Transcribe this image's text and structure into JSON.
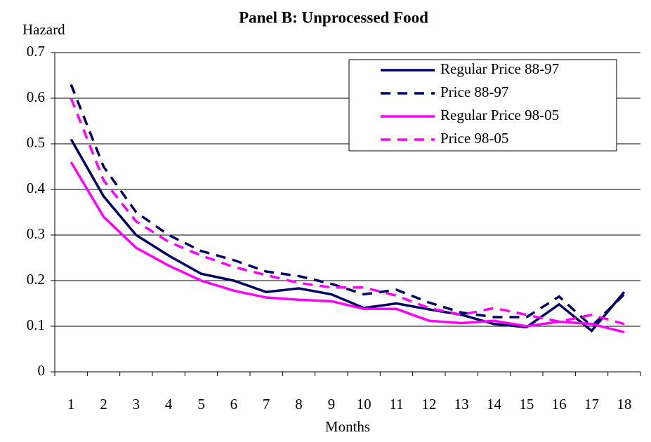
{
  "chart_data": {
    "type": "line",
    "title": "Panel B: Unprocessed Food",
    "y_label": "Hazard",
    "x_label": "Months",
    "categories": [
      "1",
      "2",
      "3",
      "4",
      "5",
      "6",
      "7",
      "8",
      "9",
      "10",
      "11",
      "12",
      "13",
      "14",
      "15",
      "16",
      "17",
      "18"
    ],
    "ylim": [
      0,
      0.7
    ],
    "yticks": [
      0,
      0.1,
      0.2,
      0.3,
      0.4,
      0.5,
      0.6,
      0.7
    ],
    "grid": true,
    "legend": "top-right",
    "series": [
      {
        "name": "Regular Price 88-97",
        "color": "#000066",
        "dash": "solid",
        "values": [
          0.51,
          0.385,
          0.3,
          0.255,
          0.215,
          0.2,
          0.175,
          0.183,
          0.17,
          0.14,
          0.15,
          0.137,
          0.125,
          0.105,
          0.098,
          0.148,
          0.09,
          0.175
        ]
      },
      {
        "name": "Price 88-97",
        "color": "#000066",
        "dash": "dashed",
        "values": [
          0.63,
          0.45,
          0.35,
          0.3,
          0.265,
          0.245,
          0.22,
          0.21,
          0.193,
          0.17,
          0.18,
          0.152,
          0.13,
          0.12,
          0.12,
          0.165,
          0.1,
          0.17
        ]
      },
      {
        "name": "Regular Price 98-05",
        "color": "#ff00ff",
        "dash": "solid",
        "values": [
          0.46,
          0.34,
          0.272,
          0.233,
          0.2,
          0.178,
          0.163,
          0.158,
          0.155,
          0.138,
          0.138,
          0.112,
          0.107,
          0.112,
          0.1,
          0.11,
          0.105,
          0.087
        ]
      },
      {
        "name": "Price 98-05",
        "color": "#ff00ff",
        "dash": "dashed",
        "values": [
          0.6,
          0.42,
          0.33,
          0.285,
          0.255,
          0.23,
          0.212,
          0.195,
          0.185,
          0.185,
          0.167,
          0.14,
          0.125,
          0.14,
          0.125,
          0.11,
          0.125,
          0.105
        ]
      }
    ]
  }
}
